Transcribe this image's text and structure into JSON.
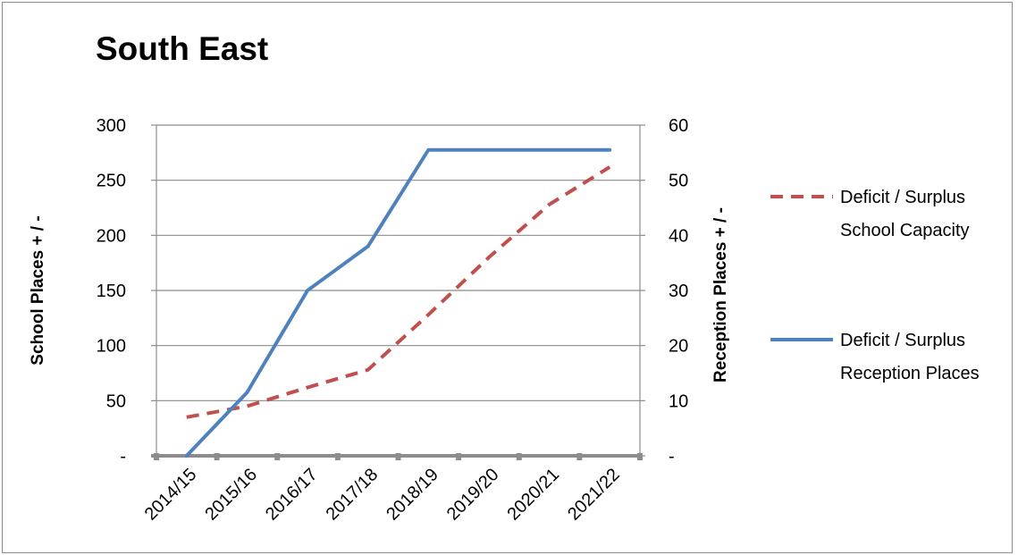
{
  "chart_data": {
    "type": "line",
    "title": "South East",
    "categories": [
      "2014/15",
      "2015/16",
      "2016/17",
      "2017/18",
      "2018/19",
      "2019/20",
      "2020/21",
      "2021/22"
    ],
    "y_left": {
      "label": "School Places + / -",
      "range": [
        0,
        300
      ],
      "ticks": [
        0,
        50,
        100,
        150,
        200,
        250,
        300
      ],
      "tick_labels": [
        "-",
        "50",
        "100",
        "150",
        "200",
        "250",
        "300"
      ]
    },
    "y_right": {
      "label": "Reception Places + / -",
      "range": [
        0,
        60
      ],
      "ticks": [
        0,
        10,
        20,
        30,
        40,
        50,
        60
      ],
      "tick_labels": [
        "-",
        "10",
        "20",
        "30",
        "40",
        "50",
        "60"
      ]
    },
    "series": [
      {
        "name": "Deficit / Surplus School Capacity",
        "legend_lines": [
          "Deficit / Surplus",
          "School Capacity"
        ],
        "axis": "left",
        "style": "dashed",
        "color": "#c0504d",
        "values": [
          35,
          45,
          62,
          78,
          128,
          180,
          228,
          262
        ]
      },
      {
        "name": "Deficit / Surplus Reception Places",
        "legend_lines": [
          "Deficit / Surplus",
          "Reception Places"
        ],
        "axis": "right",
        "style": "solid",
        "color": "#4f81bd",
        "values": [
          0,
          11.5,
          30,
          38,
          55.5,
          55.5,
          55.5,
          55.5
        ]
      }
    ],
    "grid": true,
    "legend_position": "right"
  }
}
